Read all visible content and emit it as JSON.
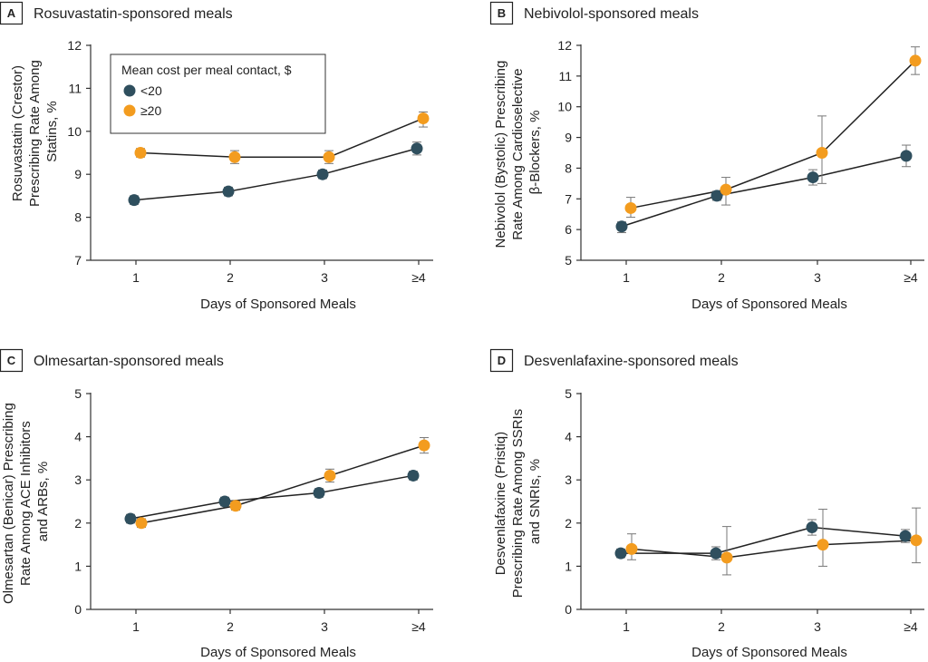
{
  "colors": {
    "lt20": "#2f4f5e",
    "ge20": "#f39c1f",
    "line": "#222222",
    "error": "#777777"
  },
  "legend": {
    "title": "Mean cost per meal contact, $",
    "items": [
      {
        "label": "<20",
        "color_key": "lt20"
      },
      {
        "label": "≥20",
        "color_key": "ge20"
      }
    ]
  },
  "chart_data": [
    {
      "type": "line",
      "panel": "A",
      "title": "Rosuvastatin-sponsored meals",
      "xlabel": "Days of Sponsored Meals",
      "ylabel": [
        "Rosuvastatin (Crestor)",
        "Prescribing Rate Among",
        "Statins, %"
      ],
      "categories": [
        "1",
        "2",
        "3",
        "≥4"
      ],
      "ylim": [
        7,
        12
      ],
      "yticks": [
        7,
        8,
        9,
        10,
        11,
        12
      ],
      "legend": "top-left",
      "series": [
        {
          "name": "<20",
          "values": [
            8.4,
            8.6,
            9.0,
            9.6
          ],
          "lower": [
            8.3,
            8.5,
            8.9,
            9.45
          ],
          "upper": [
            8.5,
            8.7,
            9.1,
            9.75
          ]
        },
        {
          "name": "≥20",
          "values": [
            9.5,
            9.4,
            9.4,
            10.3
          ],
          "lower": [
            9.4,
            9.25,
            9.25,
            10.1
          ],
          "upper": [
            9.6,
            9.55,
            9.55,
            10.45
          ]
        }
      ]
    },
    {
      "type": "line",
      "panel": "B",
      "title": "Nebivolol-sponsored meals",
      "xlabel": "Days of Sponsored Meals",
      "ylabel": [
        "Nebivolol (Bystolic) Prescribing",
        "Rate Among Cardioselective",
        "β-Blockers, %"
      ],
      "categories": [
        "1",
        "2",
        "3",
        "≥4"
      ],
      "ylim": [
        5,
        12
      ],
      "yticks": [
        5,
        6,
        7,
        8,
        9,
        10,
        11,
        12
      ],
      "series": [
        {
          "name": "<20",
          "values": [
            6.1,
            7.1,
            7.7,
            8.4
          ],
          "lower": [
            5.9,
            6.95,
            7.45,
            8.05
          ],
          "upper": [
            6.25,
            7.25,
            7.95,
            8.75
          ]
        },
        {
          "name": "≥20",
          "values": [
            6.7,
            7.3,
            8.5,
            11.5
          ],
          "lower": [
            6.4,
            6.8,
            7.5,
            11.05
          ],
          "upper": [
            7.05,
            7.7,
            9.7,
            11.95
          ]
        }
      ]
    },
    {
      "type": "line",
      "panel": "C",
      "title": "Olmesartan-sponsored meals",
      "xlabel": "Days of Sponsored Meals",
      "ylabel": [
        "Olmesartan (Benicar) Prescribing",
        "Rate Among ACE Inhibitors",
        "and ARBs, %"
      ],
      "categories": [
        "1",
        "2",
        "3",
        "≥4"
      ],
      "ylim": [
        0,
        5
      ],
      "yticks": [
        0,
        1,
        2,
        3,
        4,
        5
      ],
      "series": [
        {
          "name": "<20",
          "values": [
            2.1,
            2.5,
            2.7,
            3.1
          ],
          "lower": [
            2.0,
            2.4,
            2.6,
            3.0
          ],
          "upper": [
            2.2,
            2.6,
            2.8,
            3.2
          ]
        },
        {
          "name": "≥20",
          "values": [
            2.0,
            2.4,
            3.1,
            3.8
          ],
          "lower": [
            1.9,
            2.3,
            2.95,
            3.62
          ],
          "upper": [
            2.1,
            2.5,
            3.25,
            3.98
          ]
        }
      ]
    },
    {
      "type": "line",
      "panel": "D",
      "title": "Desvenlafaxine-sponsored meals",
      "xlabel": "Days of Sponsored Meals",
      "ylabel": [
        "Desvenlafaxine (Pristiq)",
        "Prescribing Rate Among SSRIs",
        "and SNRIs, %"
      ],
      "categories": [
        "1",
        "2",
        "3",
        "≥4"
      ],
      "ylim": [
        0,
        5
      ],
      "yticks": [
        0,
        1,
        2,
        3,
        4,
        5
      ],
      "series": [
        {
          "name": "<20",
          "values": [
            1.3,
            1.3,
            1.9,
            1.7
          ],
          "lower": [
            1.2,
            1.15,
            1.72,
            1.55
          ],
          "upper": [
            1.4,
            1.45,
            2.08,
            1.85
          ]
        },
        {
          "name": "≥20",
          "values": [
            1.4,
            1.2,
            1.5,
            1.6
          ],
          "lower": [
            1.15,
            0.8,
            1.0,
            1.08
          ],
          "upper": [
            1.75,
            1.92,
            2.32,
            2.35
          ]
        }
      ]
    }
  ]
}
